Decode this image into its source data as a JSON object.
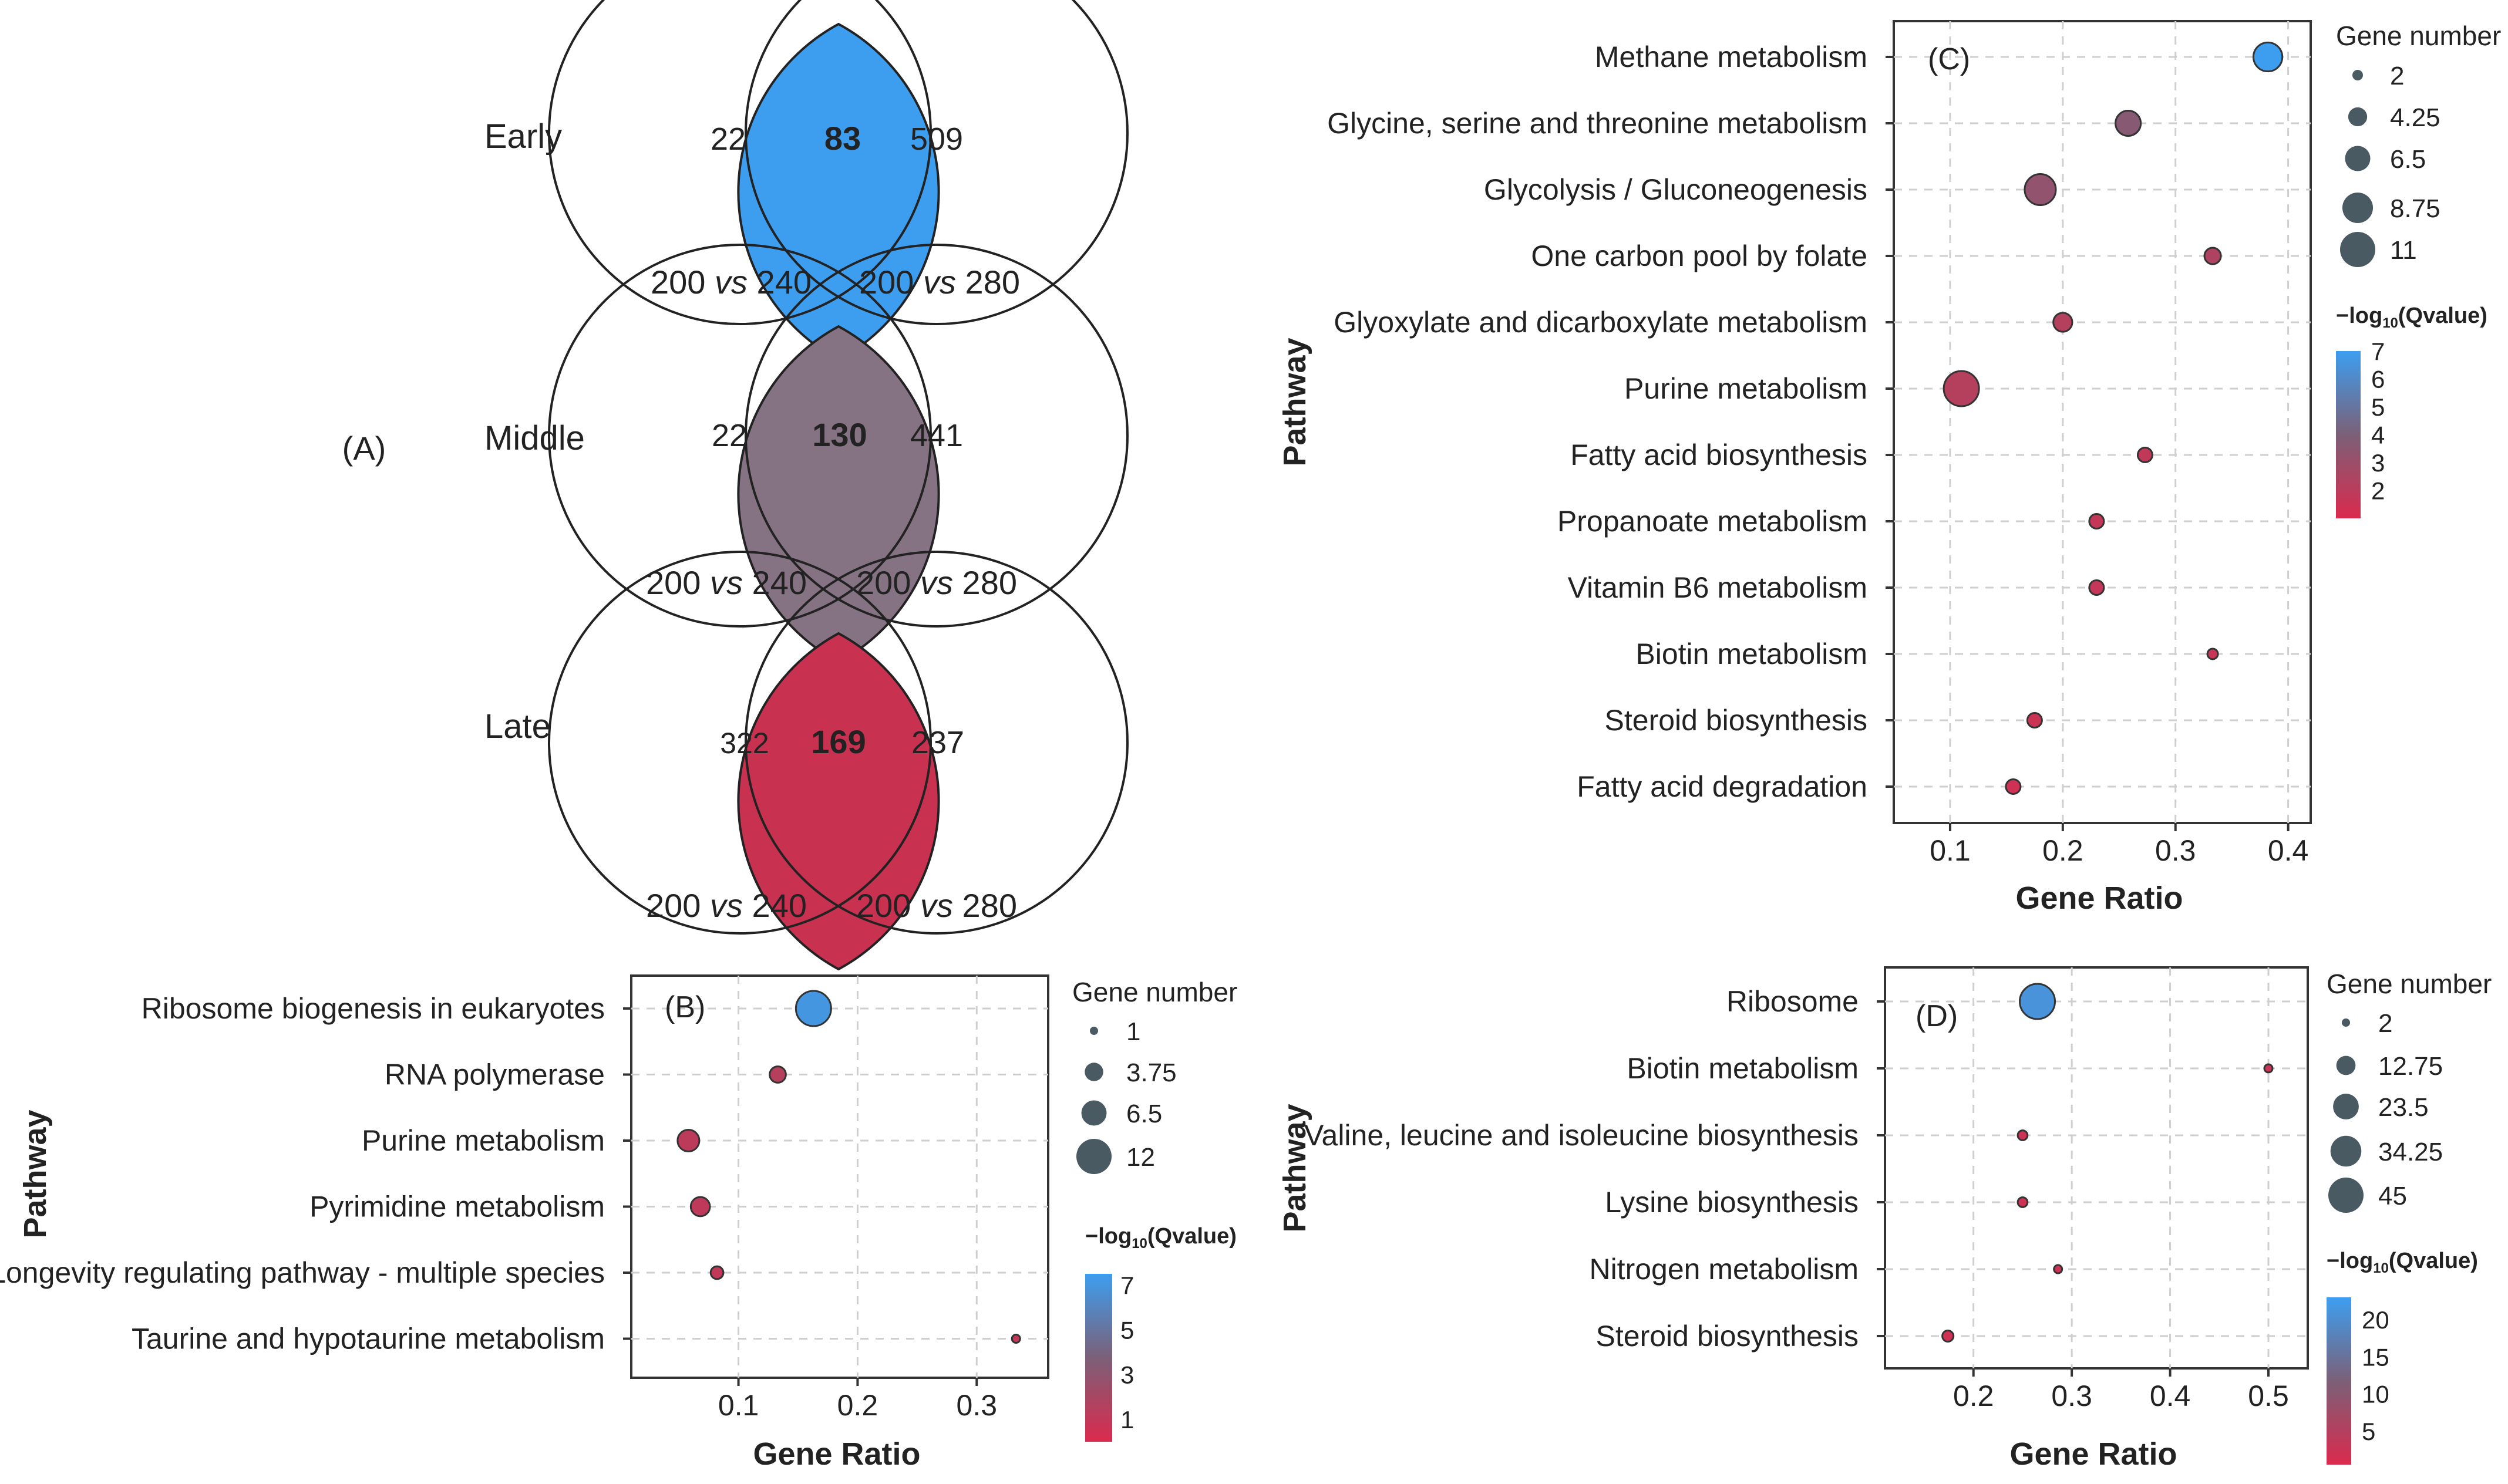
{
  "panel_a": {
    "label": "(A)",
    "rows": [
      {
        "label": "Early",
        "left_only": "22",
        "overlap": "83",
        "right_only": "509",
        "left_set": "200 vs 240",
        "right_set": "200 vs 280",
        "overlap_color": "#3D9EF0"
      },
      {
        "label": "Middle",
        "left_only": "22",
        "overlap": "130",
        "right_only": "441",
        "left_set": "200 vs 240",
        "right_set": "200 vs 280",
        "overlap_color": "#857384"
      },
      {
        "label": "Late",
        "left_only": "322",
        "overlap": "169",
        "right_only": "237",
        "left_set": "200 vs 240",
        "right_set": "200 vs 280",
        "overlap_color": "#C8314F"
      }
    ]
  },
  "chart_data": [
    {
      "panel": "(B)",
      "type": "scatter",
      "xlabel": "Gene Ratio",
      "ylabel": "Pathway",
      "xlim": [
        0.01,
        0.36
      ],
      "xticks": [
        0.1,
        0.2,
        0.3
      ],
      "xtick_labels": [
        "0.1",
        "0.2",
        "0.3"
      ],
      "categories": [
        "Ribosome biogenesis in eukaryotes",
        "RNA polymerase",
        "Purine metabolism",
        "Pyrimidine metabolism",
        "Longevity regulating pathway - multiple species",
        "Taurine and hypotaurine metabolism"
      ],
      "points": [
        {
          "pathway": "Ribosome biogenesis in eukaryotes",
          "gene_ratio": 0.163,
          "gene_number": 12,
          "neg_log10_q": 7
        },
        {
          "pathway": "RNA polymerase",
          "gene_ratio": 0.133,
          "gene_number": 3,
          "neg_log10_q": 1.5
        },
        {
          "pathway": "Purine metabolism",
          "gene_ratio": 0.058,
          "gene_number": 5,
          "neg_log10_q": 1.2
        },
        {
          "pathway": "Pyrimidine metabolism",
          "gene_ratio": 0.068,
          "gene_number": 4,
          "neg_log10_q": 1.1
        },
        {
          "pathway": "Longevity regulating pathway - multiple species",
          "gene_ratio": 0.082,
          "gene_number": 2,
          "neg_log10_q": 1.0
        },
        {
          "pathway": "Taurine and hypotaurine metabolism",
          "gene_ratio": 0.333,
          "gene_number": 1,
          "neg_log10_q": 0.9
        }
      ],
      "size_legend": {
        "title": "Gene number",
        "values": [
          1,
          3.75,
          6.5,
          12
        ],
        "labels": [
          "1",
          "3.75",
          "6.5",
          "12"
        ]
      },
      "color_legend": {
        "title_prefix": "−log",
        "title_sub": "10",
        "title_suffix": "(Qvalue)",
        "min": 0,
        "max": 7.5,
        "ticks": [
          7,
          5,
          3,
          1
        ],
        "tick_labels": [
          "7",
          "5",
          "3",
          "1"
        ]
      }
    },
    {
      "panel": "(C)",
      "type": "scatter",
      "xlabel": "Gene Ratio",
      "ylabel": "Pathway",
      "xlim": [
        0.05,
        0.42
      ],
      "xticks": [
        0.1,
        0.2,
        0.3,
        0.4
      ],
      "xtick_labels": [
        "0.1",
        "0.2",
        "0.3",
        "0.4"
      ],
      "categories": [
        "Methane metabolism",
        "Glycine, serine and threonine metabolism",
        "Glycolysis / Gluconeogenesis",
        "One carbon pool by folate",
        "Glyoxylate and dicarboxylate metabolism",
        "Purine metabolism",
        "Fatty acid biosynthesis",
        "Propanoate metabolism",
        "Vitamin B6 metabolism",
        "Biotin metabolism",
        "Steroid biosynthesis",
        "Fatty acid degradation"
      ],
      "points": [
        {
          "pathway": "Methane metabolism",
          "gene_ratio": 0.382,
          "gene_number": 8,
          "neg_log10_q": 7
        },
        {
          "pathway": "Glycine, serine and threonine metabolism",
          "gene_ratio": 0.258,
          "gene_number": 6.5,
          "neg_log10_q": 3.6
        },
        {
          "pathway": "Glycolysis / Gluconeogenesis",
          "gene_ratio": 0.18,
          "gene_number": 9,
          "neg_log10_q": 3.3
        },
        {
          "pathway": "One carbon pool by folate",
          "gene_ratio": 0.333,
          "gene_number": 3.5,
          "neg_log10_q": 2.4
        },
        {
          "pathway": "Glyoxylate and dicarboxylate metabolism",
          "gene_ratio": 0.2,
          "gene_number": 4.25,
          "neg_log10_q": 2.2
        },
        {
          "pathway": "Purine metabolism",
          "gene_ratio": 0.11,
          "gene_number": 11,
          "neg_log10_q": 2.2
        },
        {
          "pathway": "Fatty acid biosynthesis",
          "gene_ratio": 0.273,
          "gene_number": 3,
          "neg_log10_q": 1.8
        },
        {
          "pathway": "Propanoate metabolism",
          "gene_ratio": 0.23,
          "gene_number": 3,
          "neg_log10_q": 1.7
        },
        {
          "pathway": "Vitamin B6 metabolism",
          "gene_ratio": 0.23,
          "gene_number": 3,
          "neg_log10_q": 1.7
        },
        {
          "pathway": "Biotin metabolism",
          "gene_ratio": 0.333,
          "gene_number": 2,
          "neg_log10_q": 1.6
        },
        {
          "pathway": "Steroid biosynthesis",
          "gene_ratio": 0.175,
          "gene_number": 3,
          "neg_log10_q": 1.5
        },
        {
          "pathway": "Fatty acid degradation",
          "gene_ratio": 0.156,
          "gene_number": 3,
          "neg_log10_q": 1.4
        }
      ],
      "size_legend": {
        "title": "Gene number",
        "values": [
          2,
          4.25,
          6.5,
          8.75,
          11
        ],
        "labels": [
          "2",
          "4.25",
          "6.5",
          "8.75",
          "11"
        ]
      },
      "color_legend": {
        "title_prefix": "−log",
        "title_sub": "10",
        "title_suffix": "(Qvalue)",
        "min": 1,
        "max": 7,
        "ticks": [
          7,
          6,
          5,
          4,
          3,
          2
        ],
        "tick_labels": [
          "7",
          "6",
          "5",
          "4",
          "3",
          "2"
        ]
      }
    },
    {
      "panel": "(D)",
      "type": "scatter",
      "xlabel": "Gene Ratio",
      "ylabel": "Pathway",
      "xlim": [
        0.11,
        0.54
      ],
      "xticks": [
        0.2,
        0.3,
        0.4,
        0.5
      ],
      "xtick_labels": [
        "0.2",
        "0.3",
        "0.4",
        "0.5"
      ],
      "categories": [
        "Ribosome",
        "Biotin metabolism",
        "Valine, leucine and isoleucine biosynthesis",
        "Lysine biosynthesis",
        "Nitrogen metabolism",
        "Steroid biosynthesis"
      ],
      "points": [
        {
          "pathway": "Ribosome",
          "gene_ratio": 0.265,
          "gene_number": 45,
          "neg_log10_q": 21
        },
        {
          "pathway": "Biotin metabolism",
          "gene_ratio": 0.5,
          "gene_number": 2,
          "neg_log10_q": 2.5
        },
        {
          "pathway": "Valine, leucine and isoleucine biosynthesis",
          "gene_ratio": 0.25,
          "gene_number": 3,
          "neg_log10_q": 2.3
        },
        {
          "pathway": "Lysine biosynthesis",
          "gene_ratio": 0.25,
          "gene_number": 3,
          "neg_log10_q": 2.2
        },
        {
          "pathway": "Nitrogen metabolism",
          "gene_ratio": 0.286,
          "gene_number": 2,
          "neg_log10_q": 2.0
        },
        {
          "pathway": "Steroid biosynthesis",
          "gene_ratio": 0.174,
          "gene_number": 4,
          "neg_log10_q": 1.9
        }
      ],
      "size_legend": {
        "title": "Gene number",
        "values": [
          2,
          12.75,
          23.5,
          34.25,
          45
        ],
        "labels": [
          "2",
          "12.75",
          "23.5",
          "34.25",
          "45"
        ]
      },
      "color_legend": {
        "title_prefix": "−log",
        "title_sub": "10",
        "title_suffix": "(Qvalue)",
        "min": 0.5,
        "max": 23,
        "ticks": [
          20,
          15,
          10,
          5
        ],
        "tick_labels": [
          "20",
          "15",
          "10",
          "5"
        ]
      }
    }
  ]
}
